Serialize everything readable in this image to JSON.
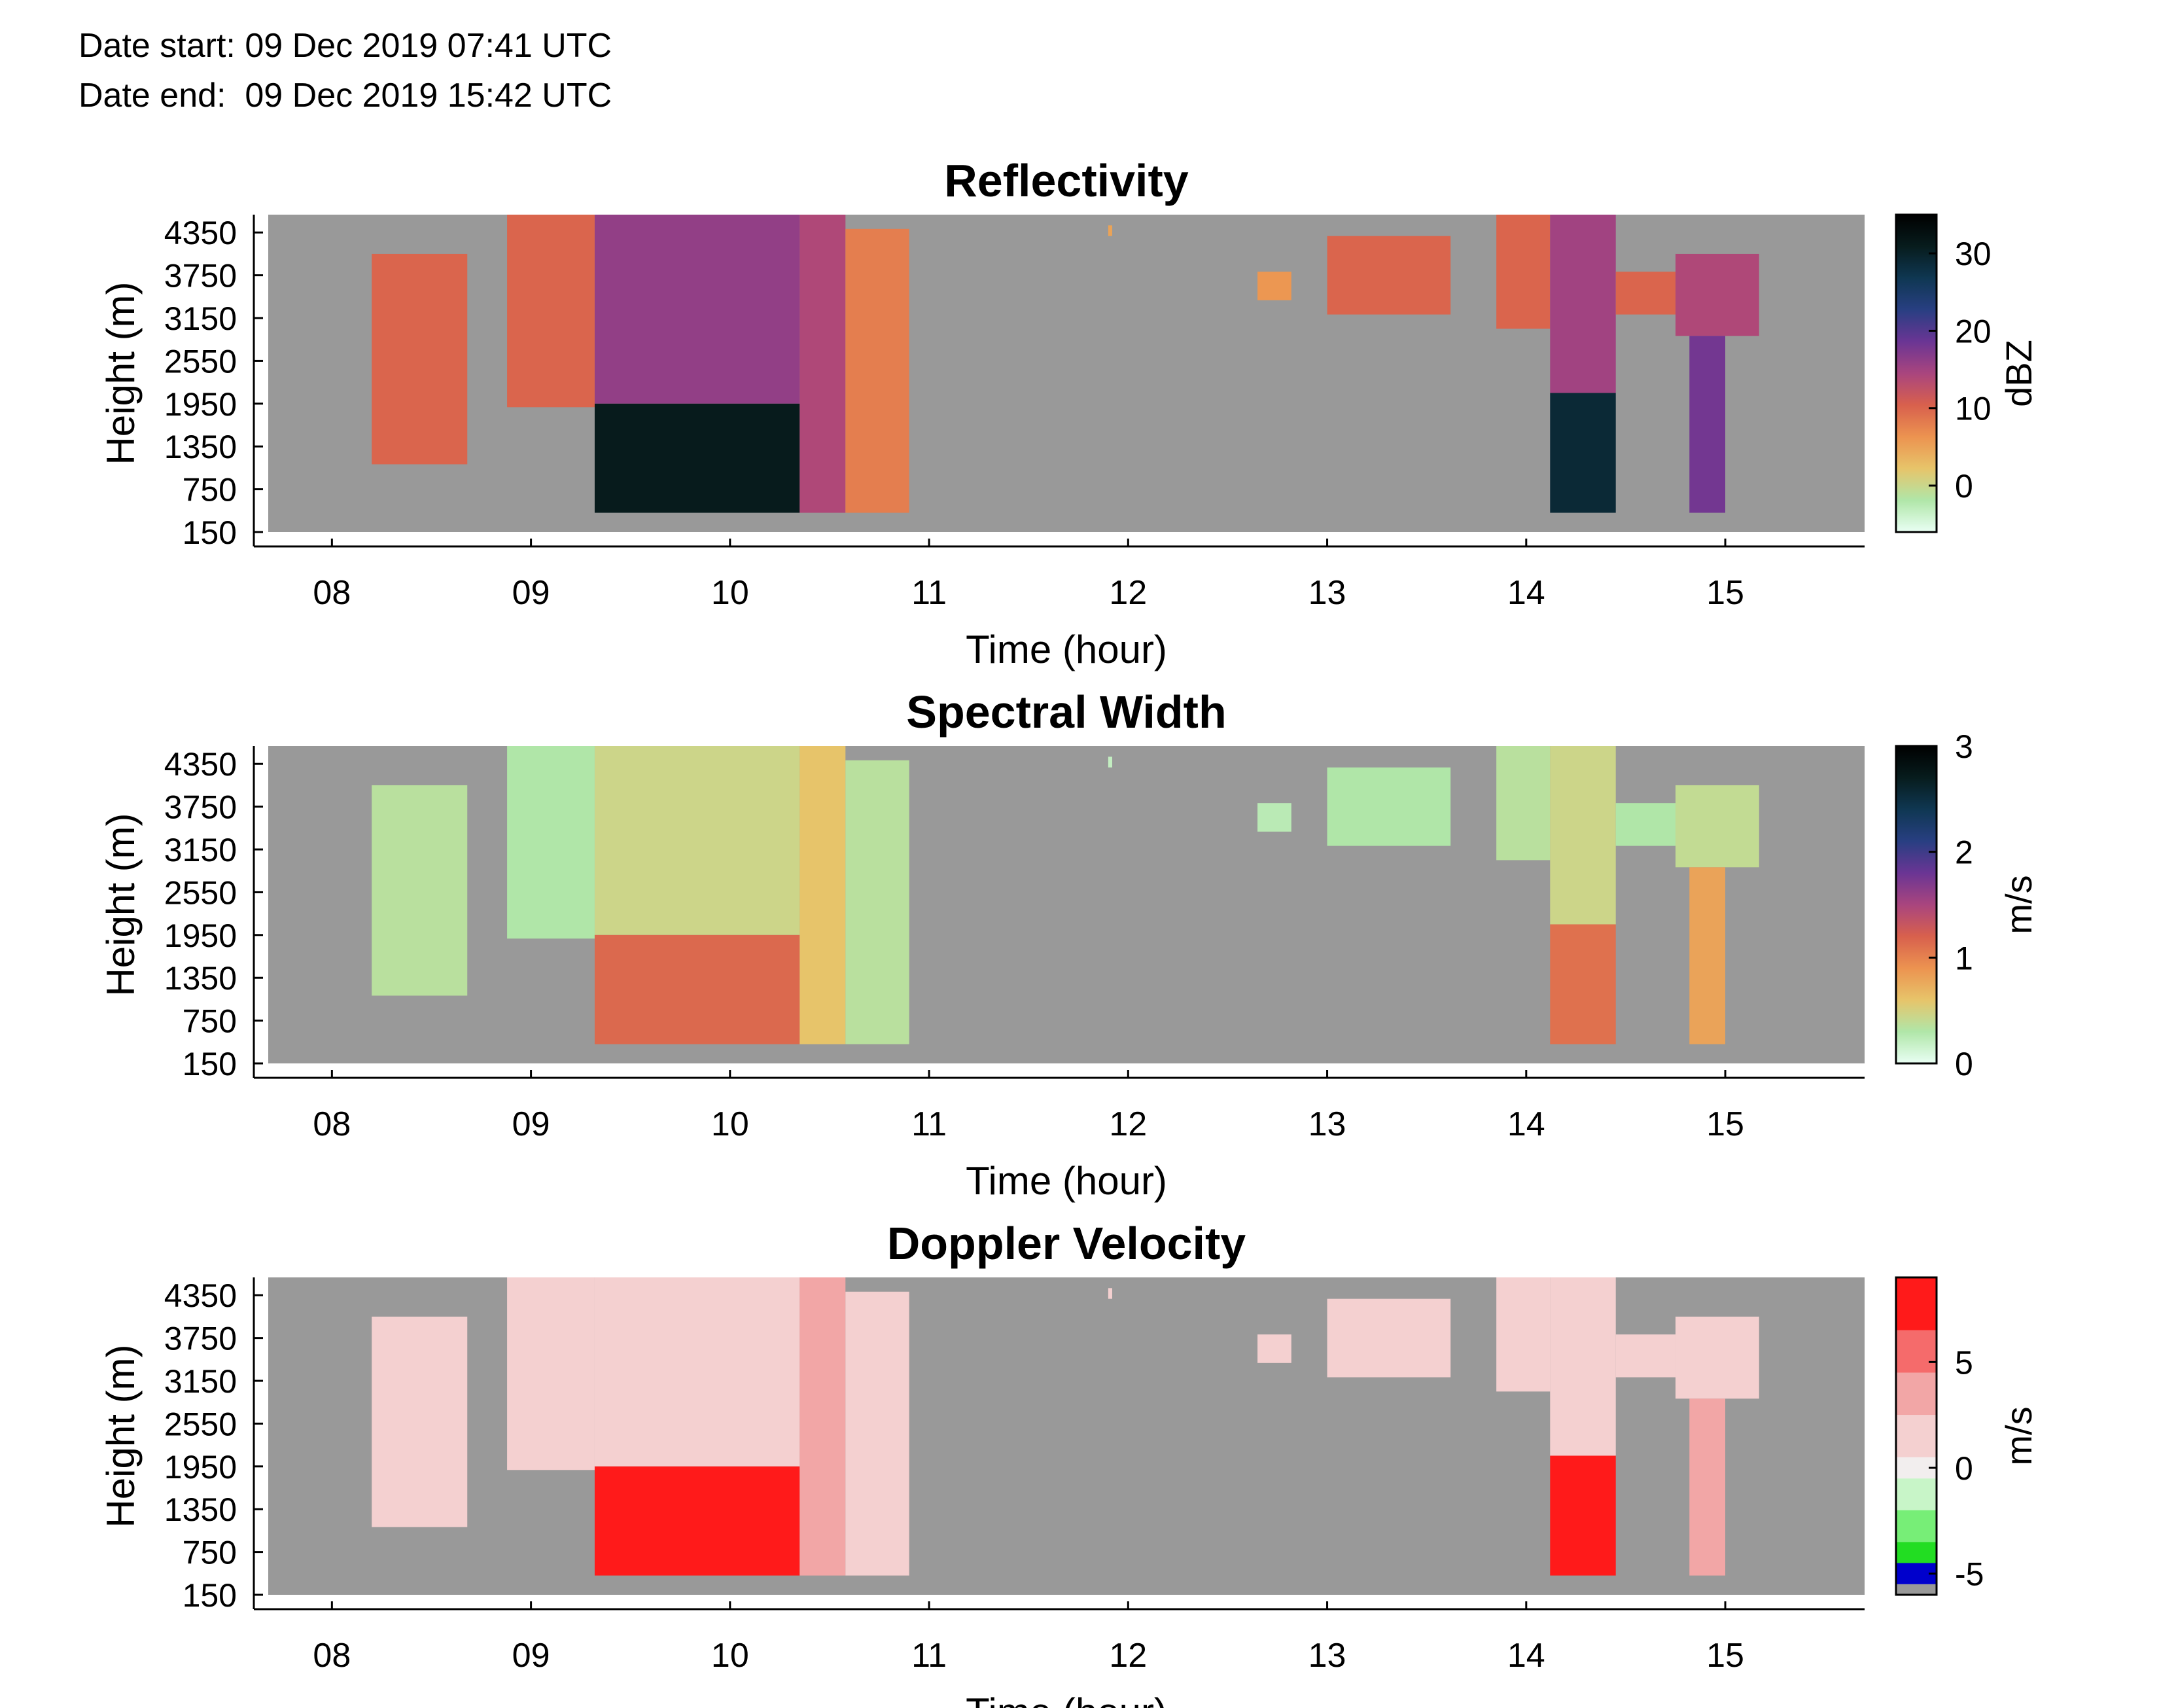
{
  "header": {
    "date_start": "Date start: 09 Dec 2019 07:41 UTC",
    "date_end": "Date end:  09 Dec 2019 15:42 UTC"
  },
  "background_color": "#999999",
  "chart_data": [
    {
      "type": "heatmap",
      "title": "Reflectivity",
      "xlabel": "Time (hour)",
      "ylabel": "Height (m)",
      "xlim": [
        7.68,
        15.7
      ],
      "ylim": [
        150,
        4600
      ],
      "x_ticks": [
        8,
        9,
        10,
        11,
        12,
        13,
        14,
        15
      ],
      "x_tick_labels": [
        "08",
        "09",
        "10",
        "11",
        "12",
        "13",
        "14",
        "15"
      ],
      "y_ticks": [
        150,
        750,
        1350,
        1950,
        2550,
        3150,
        3750,
        4350
      ],
      "y_tick_labels": [
        "150",
        "750",
        "1350",
        "1950",
        "2550",
        "3150",
        "3750",
        "4350"
      ],
      "colorbar": {
        "label": "dBZ",
        "range": [
          -6,
          35
        ],
        "ticks": [
          0,
          10,
          20,
          30
        ],
        "tick_labels": [
          "0",
          "10",
          "20",
          "30"
        ],
        "colors": [
          "#e9fff4",
          "#b0e6a8",
          "#e7c46a",
          "#ec9350",
          "#d8604d",
          "#a9457e",
          "#6a3594",
          "#283f82",
          "#0f3752",
          "#071c1d",
          "#000000"
        ]
      },
      "regions": [
        {
          "t0": 8.2,
          "t1": 8.68,
          "h0": 1100,
          "h1": 4050,
          "value": 10
        },
        {
          "t0": 8.88,
          "t1": 9.32,
          "h0": 1900,
          "h1": 4600,
          "value": 10
        },
        {
          "t0": 9.32,
          "t1": 10.35,
          "h0": 1950,
          "h1": 4600,
          "value": 16
        },
        {
          "t0": 9.32,
          "t1": 10.35,
          "h0": 420,
          "h1": 1950,
          "value": 31
        },
        {
          "t0": 10.35,
          "t1": 10.58,
          "h0": 420,
          "h1": 4600,
          "value": 14
        },
        {
          "t0": 10.58,
          "t1": 10.9,
          "h0": 420,
          "h1": 4400,
          "value": 8
        },
        {
          "t0": 11.9,
          "t1": 11.92,
          "h0": 4300,
          "h1": 4450,
          "value": 5
        },
        {
          "t0": 12.65,
          "t1": 12.82,
          "h0": 3400,
          "h1": 3800,
          "value": 6
        },
        {
          "t0": 13.0,
          "t1": 13.62,
          "h0": 3200,
          "h1": 4300,
          "value": 10
        },
        {
          "t0": 13.85,
          "t1": 14.12,
          "h0": 3000,
          "h1": 4600,
          "value": 10
        },
        {
          "t0": 14.12,
          "t1": 14.45,
          "h0": 2100,
          "h1": 4600,
          "value": 15
        },
        {
          "t0": 14.12,
          "t1": 14.45,
          "h0": 420,
          "h1": 2100,
          "value": 29
        },
        {
          "t0": 14.45,
          "t1": 14.75,
          "h0": 3200,
          "h1": 3800,
          "value": 10
        },
        {
          "t0": 14.75,
          "t1": 15.17,
          "h0": 2900,
          "h1": 4050,
          "value": 14
        },
        {
          "t0": 14.82,
          "t1": 15.0,
          "h0": 420,
          "h1": 2900,
          "value": 18
        }
      ]
    },
    {
      "type": "heatmap",
      "title": "Spectral Width",
      "xlabel": "Time (hour)",
      "ylabel": "Height (m)",
      "xlim": [
        7.68,
        15.7
      ],
      "ylim": [
        150,
        4600
      ],
      "x_ticks": [
        8,
        9,
        10,
        11,
        12,
        13,
        14,
        15
      ],
      "x_tick_labels": [
        "08",
        "09",
        "10",
        "11",
        "12",
        "13",
        "14",
        "15"
      ],
      "y_ticks": [
        150,
        750,
        1350,
        1950,
        2550,
        3150,
        3750,
        4350
      ],
      "y_tick_labels": [
        "150",
        "750",
        "1350",
        "1950",
        "2550",
        "3150",
        "3750",
        "4350"
      ],
      "colorbar": {
        "label": "m/s",
        "range": [
          0,
          3
        ],
        "ticks": [
          0,
          1,
          2,
          3
        ],
        "tick_labels": [
          "0",
          "1",
          "2",
          "3"
        ],
        "colors": [
          "#e9fff4",
          "#b0e6a8",
          "#e7c46a",
          "#ec9350",
          "#d8604d",
          "#a9457e",
          "#6a3594",
          "#283f82",
          "#0f3752",
          "#071c1d",
          "#000000"
        ]
      },
      "regions": [
        {
          "t0": 8.2,
          "t1": 8.68,
          "h0": 1100,
          "h1": 4050,
          "value": 0.35
        },
        {
          "t0": 8.88,
          "t1": 9.32,
          "h0": 1900,
          "h1": 4600,
          "value": 0.3
        },
        {
          "t0": 9.32,
          "t1": 10.35,
          "h0": 1950,
          "h1": 4600,
          "value": 0.45
        },
        {
          "t0": 9.32,
          "t1": 10.35,
          "h0": 420,
          "h1": 1950,
          "value": 1.15
        },
        {
          "t0": 10.35,
          "t1": 10.58,
          "h0": 420,
          "h1": 4600,
          "value": 0.6
        },
        {
          "t0": 10.58,
          "t1": 10.9,
          "h0": 420,
          "h1": 4400,
          "value": 0.35
        },
        {
          "t0": 11.9,
          "t1": 11.92,
          "h0": 4300,
          "h1": 4450,
          "value": 0.2
        },
        {
          "t0": 12.65,
          "t1": 12.82,
          "h0": 3400,
          "h1": 3800,
          "value": 0.25
        },
        {
          "t0": 13.0,
          "t1": 13.62,
          "h0": 3200,
          "h1": 4300,
          "value": 0.3
        },
        {
          "t0": 13.85,
          "t1": 14.12,
          "h0": 3000,
          "h1": 4600,
          "value": 0.35
        },
        {
          "t0": 14.12,
          "t1": 14.45,
          "h0": 2100,
          "h1": 4600,
          "value": 0.45
        },
        {
          "t0": 14.12,
          "t1": 14.45,
          "h0": 420,
          "h1": 2100,
          "value": 1.1
        },
        {
          "t0": 14.45,
          "t1": 14.75,
          "h0": 3200,
          "h1": 3800,
          "value": 0.3
        },
        {
          "t0": 14.75,
          "t1": 15.17,
          "h0": 2900,
          "h1": 4050,
          "value": 0.4
        },
        {
          "t0": 14.82,
          "t1": 15.0,
          "h0": 420,
          "h1": 2900,
          "value": 0.8
        }
      ]
    },
    {
      "type": "heatmap",
      "title": "Doppler Velocity",
      "xlabel": "Time (hour)",
      "ylabel": "Height (m)",
      "xlim": [
        7.68,
        15.7
      ],
      "ylim": [
        150,
        4600
      ],
      "x_ticks": [
        8,
        9,
        10,
        11,
        12,
        13,
        14,
        15
      ],
      "x_tick_labels": [
        "08",
        "09",
        "10",
        "11",
        "12",
        "13",
        "14",
        "15"
      ],
      "y_ticks": [
        150,
        750,
        1350,
        1950,
        2550,
        3150,
        3750,
        4350
      ],
      "y_tick_labels": [
        "150",
        "750",
        "1350",
        "1950",
        "2550",
        "3150",
        "3750",
        "4350"
      ],
      "colorbar": {
        "label": "m/s",
        "range": [
          -6,
          9
        ],
        "ticks": [
          -5,
          0,
          5
        ],
        "tick_labels": [
          "-5",
          "0",
          "5"
        ],
        "segments": [
          {
            "from": -6,
            "to": -5.5,
            "color": "#999999"
          },
          {
            "from": -5.5,
            "to": -4.5,
            "color": "#0000cc"
          },
          {
            "from": -4.5,
            "to": -3.5,
            "color": "#22dd22"
          },
          {
            "from": -3.5,
            "to": -2.0,
            "color": "#77ee77"
          },
          {
            "from": -2.0,
            "to": -0.5,
            "color": "#c8f5c8"
          },
          {
            "from": -0.5,
            "to": 0.5,
            "color": "#f2eeee"
          },
          {
            "from": 0.5,
            "to": 2.5,
            "color": "#f4d0d0"
          },
          {
            "from": 2.5,
            "to": 4.5,
            "color": "#f2a6a6"
          },
          {
            "from": 4.5,
            "to": 6.5,
            "color": "#f56b6b"
          },
          {
            "from": 6.5,
            "to": 9,
            "color": "#ff1a1a"
          }
        ]
      },
      "regions": [
        {
          "t0": 8.2,
          "t1": 8.68,
          "h0": 1100,
          "h1": 4050,
          "value": 1.5
        },
        {
          "t0": 8.88,
          "t1": 9.32,
          "h0": 1900,
          "h1": 4600,
          "value": 1.5
        },
        {
          "t0": 9.32,
          "t1": 10.35,
          "h0": 1950,
          "h1": 4600,
          "value": 1.0
        },
        {
          "t0": 9.32,
          "t1": 10.35,
          "h0": 420,
          "h1": 1950,
          "value": 7.5
        },
        {
          "t0": 10.35,
          "t1": 10.58,
          "h0": 420,
          "h1": 4600,
          "value": 3.0
        },
        {
          "t0": 10.58,
          "t1": 10.9,
          "h0": 420,
          "h1": 4400,
          "value": 1.5
        },
        {
          "t0": 11.9,
          "t1": 11.92,
          "h0": 4300,
          "h1": 4450,
          "value": 1.0
        },
        {
          "t0": 12.65,
          "t1": 12.82,
          "h0": 3400,
          "h1": 3800,
          "value": 1.5
        },
        {
          "t0": 13.0,
          "t1": 13.62,
          "h0": 3200,
          "h1": 4300,
          "value": 1.0
        },
        {
          "t0": 13.85,
          "t1": 14.12,
          "h0": 3000,
          "h1": 4600,
          "value": 1.5
        },
        {
          "t0": 14.12,
          "t1": 14.45,
          "h0": 2100,
          "h1": 4600,
          "value": 1.5
        },
        {
          "t0": 14.12,
          "t1": 14.45,
          "h0": 420,
          "h1": 2100,
          "value": 7.0
        },
        {
          "t0": 14.45,
          "t1": 14.75,
          "h0": 3200,
          "h1": 3800,
          "value": 1.0
        },
        {
          "t0": 14.75,
          "t1": 15.17,
          "h0": 2900,
          "h1": 4050,
          "value": 1.5
        },
        {
          "t0": 14.82,
          "t1": 15.0,
          "h0": 420,
          "h1": 2900,
          "value": 4.0
        }
      ]
    }
  ]
}
